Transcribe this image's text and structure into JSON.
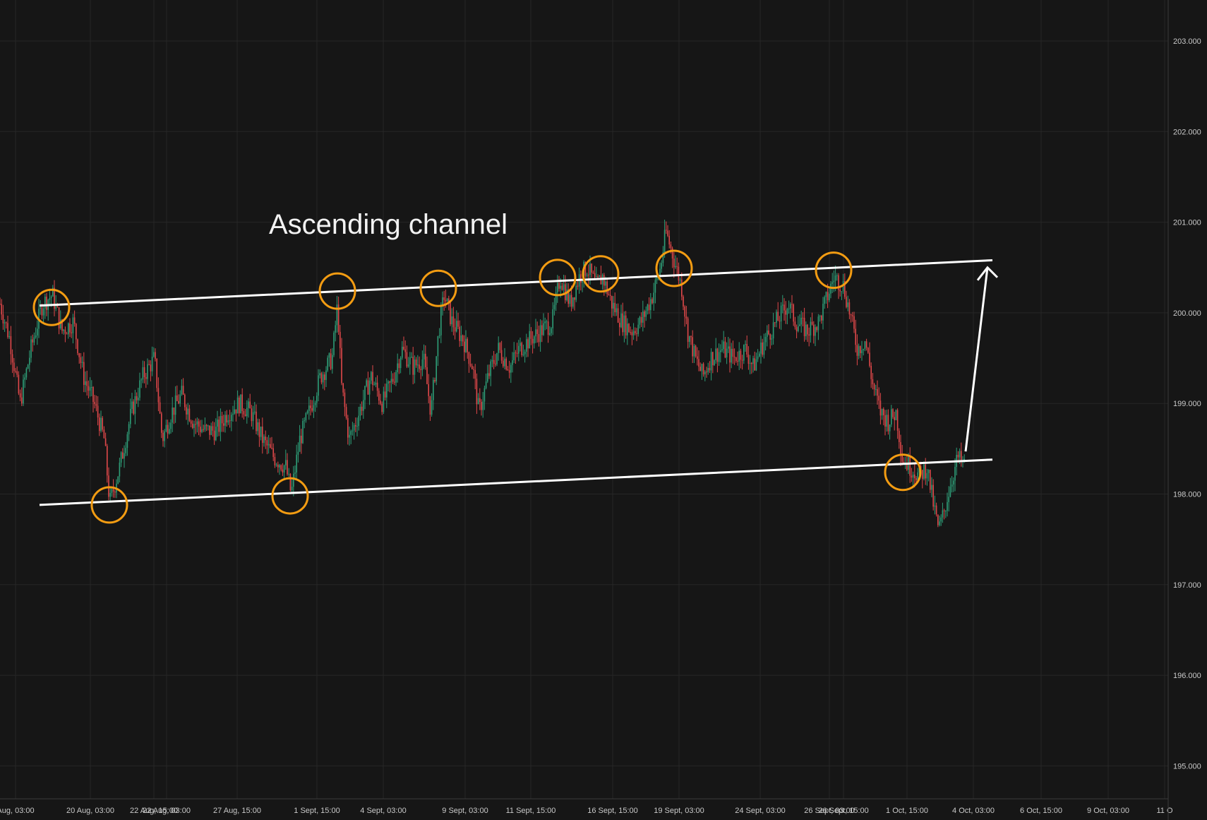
{
  "chart_data": {
    "type": "candlestick",
    "colors": {
      "background": "#161616",
      "grid": "#262626",
      "axis_text": "#c9c9c9",
      "up": "#2e9e78",
      "down": "#e0484a",
      "channel_line": "#ffffff",
      "touch_circle": "#f39c12",
      "annotation_text": "#f2f2f2"
    },
    "y_axis": {
      "ticks": [
        "203.000",
        "202.000",
        "201.000",
        "200.000",
        "199.000",
        "198.000",
        "197.000",
        "196.000",
        "195.000"
      ],
      "min": 194.6,
      "max": 203.4
    },
    "x_axis": {
      "ticks": [
        "Aug, 03:00",
        "20 Aug, 03:00",
        "22 Aug, 15:00",
        "22 Aug, 03:00",
        "27 Aug, 15:00",
        "1 Sept, 15:00",
        "4 Sept, 03:00",
        "9 Sept, 03:00",
        "11 Sept, 15:00",
        "16 Sept, 15:00",
        "19 Sept, 03:00",
        "24 Sept, 03:00",
        "26 Sept, 03:00",
        "26 Sept, 15:00",
        "1 Oct, 15:00",
        "4 Oct, 03:00",
        "6 Oct, 15:00",
        "9 Oct, 03:00",
        "11 O"
      ],
      "grid": true
    },
    "price_path": [
      [
        0,
        200.1
      ],
      [
        13,
        199.7
      ],
      [
        26,
        199.0
      ],
      [
        40,
        199.6
      ],
      [
        55,
        200.1
      ],
      [
        68,
        200.2
      ],
      [
        80,
        199.8
      ],
      [
        95,
        199.9
      ],
      [
        108,
        199.3
      ],
      [
        122,
        199.0
      ],
      [
        135,
        198.6
      ],
      [
        142,
        197.9
      ],
      [
        155,
        198.3
      ],
      [
        170,
        198.9
      ],
      [
        185,
        199.3
      ],
      [
        200,
        199.5
      ],
      [
        210,
        198.6
      ],
      [
        222,
        198.9
      ],
      [
        235,
        199.1
      ],
      [
        250,
        198.8
      ],
      [
        265,
        198.7
      ],
      [
        280,
        198.7
      ],
      [
        295,
        198.9
      ],
      [
        310,
        199.0
      ],
      [
        325,
        198.9
      ],
      [
        340,
        198.6
      ],
      [
        355,
        198.4
      ],
      [
        370,
        198.3
      ],
      [
        377,
        198.0
      ],
      [
        388,
        198.6
      ],
      [
        400,
        198.9
      ],
      [
        415,
        199.3
      ],
      [
        430,
        199.5
      ],
      [
        437,
        200.1
      ],
      [
        442,
        199.2
      ],
      [
        452,
        198.6
      ],
      [
        465,
        198.9
      ],
      [
        480,
        199.3
      ],
      [
        495,
        199.0
      ],
      [
        510,
        199.3
      ],
      [
        520,
        199.6
      ],
      [
        535,
        199.4
      ],
      [
        548,
        199.5
      ],
      [
        558,
        198.9
      ],
      [
        568,
        199.8
      ],
      [
        575,
        200.2
      ],
      [
        585,
        199.9
      ],
      [
        600,
        199.7
      ],
      [
        612,
        199.4
      ],
      [
        620,
        198.9
      ],
      [
        632,
        199.3
      ],
      [
        645,
        199.6
      ],
      [
        660,
        199.4
      ],
      [
        672,
        199.6
      ],
      [
        685,
        199.7
      ],
      [
        700,
        199.8
      ],
      [
        715,
        199.9
      ],
      [
        725,
        200.4
      ],
      [
        738,
        200.1
      ],
      [
        750,
        200.4
      ],
      [
        760,
        200.5
      ],
      [
        772,
        200.3
      ],
      [
        780,
        200.4
      ],
      [
        792,
        200.1
      ],
      [
        805,
        199.9
      ],
      [
        818,
        199.8
      ],
      [
        830,
        199.9
      ],
      [
        845,
        200.2
      ],
      [
        855,
        200.5
      ],
      [
        862,
        200.9
      ],
      [
        872,
        200.6
      ],
      [
        882,
        200.3
      ],
      [
        890,
        199.8
      ],
      [
        900,
        199.5
      ],
      [
        910,
        199.3
      ],
      [
        920,
        199.5
      ],
      [
        935,
        199.6
      ],
      [
        950,
        199.5
      ],
      [
        965,
        199.6
      ],
      [
        975,
        199.4
      ],
      [
        990,
        199.7
      ],
      [
        1005,
        199.9
      ],
      [
        1020,
        200.1
      ],
      [
        1030,
        199.9
      ],
      [
        1045,
        199.8
      ],
      [
        1060,
        199.9
      ],
      [
        1072,
        200.2
      ],
      [
        1080,
        200.4
      ],
      [
        1092,
        200.3
      ],
      [
        1100,
        200.0
      ],
      [
        1110,
        199.6
      ],
      [
        1120,
        199.7
      ],
      [
        1130,
        199.2
      ],
      [
        1140,
        198.9
      ],
      [
        1150,
        198.8
      ],
      [
        1160,
        198.9
      ],
      [
        1168,
        198.4
      ],
      [
        1178,
        198.3
      ],
      [
        1190,
        198.2
      ],
      [
        1200,
        198.3
      ],
      [
        1208,
        197.9
      ],
      [
        1215,
        197.6
      ],
      [
        1222,
        197.8
      ],
      [
        1230,
        198.1
      ],
      [
        1240,
        198.4
      ],
      [
        1250,
        198.3
      ]
    ]
  },
  "annotations": {
    "title": "Ascending channel"
  }
}
